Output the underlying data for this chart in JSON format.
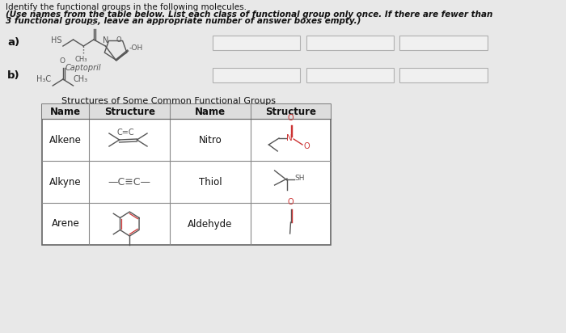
{
  "bg_color": "#e8e8e8",
  "title_line1": "Identify the functional groups in the following molecules.",
  "title_line2": "(Use names from the table below. List each class of functional group only once. If there are fewer than",
  "title_line3": "3 functional groups, leave an appropriate number of answer boxes empty.)",
  "label_a": "a)",
  "label_b": "b)",
  "captopril_label": "Captopril",
  "table_title": "Structures of Some Common Functional Groups",
  "table_col1_names": [
    "Alkene",
    "Alkyne",
    "Arene"
  ],
  "table_col2_names": [
    "Nitro",
    "Thiol",
    "Aldehyde"
  ],
  "answer_box_color": "#f0f0f0",
  "answer_box_border": "#b0b0b0",
  "table_border": "#888888",
  "text_color": "#111111",
  "mol_color": "#555555",
  "red_color": "#cc3333",
  "font_size_title": 7.5,
  "font_size_label": 9.5,
  "font_size_table": 8.5
}
